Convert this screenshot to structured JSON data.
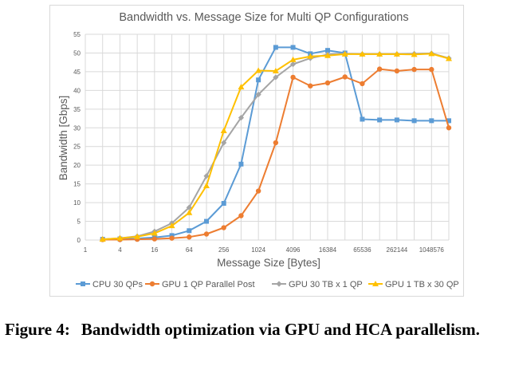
{
  "chart_data": {
    "type": "line",
    "title": "Bandwidth vs. Message Size for Multi QP Configurations",
    "xlabel": "Message Size [Bytes]",
    "ylabel": "Bandwidth [Gbps]",
    "ylim": [
      0,
      55
    ],
    "yticks": [
      0,
      5,
      10,
      15,
      20,
      25,
      30,
      35,
      40,
      45,
      50,
      55
    ],
    "xticks": [
      "1",
      "4",
      "16",
      "64",
      "256",
      "1024",
      "4096",
      "16384",
      "65536",
      "262144",
      "1048576"
    ],
    "x_log2_range": [
      0,
      21
    ],
    "grid": true,
    "legend_position": "bottom",
    "series": [
      {
        "name": "CPU 30 QPs",
        "color": "#5b9bd5",
        "marker": "square",
        "x": [
          2,
          4,
          8,
          16,
          32,
          64,
          128,
          256,
          512,
          1024,
          2048,
          4096,
          8192,
          16384,
          32768,
          65536,
          131072,
          262144,
          524288,
          1048576,
          2097152
        ],
        "values": [
          0.2,
          0.3,
          0.4,
          0.7,
          1.2,
          2.5,
          5.0,
          9.8,
          20.3,
          42.8,
          51.5,
          51.5,
          49.8,
          50.7,
          50.0,
          32.3,
          32.1,
          32.1,
          31.9,
          31.9,
          31.9
        ]
      },
      {
        "name": "GPU 1 QP Parallel Post",
        "color": "#ed7d31",
        "marker": "circle",
        "x": [
          2,
          4,
          8,
          16,
          32,
          64,
          128,
          256,
          512,
          1024,
          2048,
          4096,
          8192,
          16384,
          32768,
          65536,
          131072,
          262144,
          524288,
          1048576,
          2097152
        ],
        "values": [
          0.1,
          0.1,
          0.2,
          0.3,
          0.5,
          0.8,
          1.6,
          3.3,
          6.5,
          13.1,
          26.0,
          43.5,
          41.2,
          42.0,
          43.6,
          41.8,
          45.7,
          45.2,
          45.6,
          45.6,
          30.0
        ]
      },
      {
        "name": "GPU 30 TB x 1 QP",
        "color": "#a5a5a5",
        "marker": "diamond",
        "x": [
          2,
          4,
          8,
          16,
          32,
          64,
          128,
          256,
          512,
          1024,
          2048,
          4096,
          8192,
          16384,
          32768,
          65536,
          131072,
          262144,
          524288,
          1048576,
          2097152
        ],
        "values": [
          0.2,
          0.5,
          1.0,
          2.3,
          4.5,
          8.7,
          17.1,
          26.0,
          32.7,
          38.9,
          43.5,
          47.0,
          48.6,
          49.6,
          49.8,
          49.7,
          49.7,
          49.7,
          49.8,
          49.9,
          48.6
        ]
      },
      {
        "name": "GPU 1 TB x 30 QP",
        "color": "#ffc000",
        "marker": "triangle",
        "x": [
          2,
          4,
          8,
          16,
          32,
          64,
          128,
          256,
          512,
          1024,
          2048,
          4096,
          8192,
          16384,
          32768,
          65536,
          131072,
          262144,
          524288,
          1048576,
          2097152
        ],
        "values": [
          0.2,
          0.5,
          0.9,
          1.8,
          3.8,
          7.3,
          14.5,
          29.2,
          40.9,
          45.3,
          45.2,
          48.2,
          49.1,
          49.3,
          49.7,
          49.7,
          49.7,
          49.7,
          49.6,
          49.8,
          48.5
        ]
      }
    ]
  },
  "caption": {
    "label": "Figure 4:",
    "text": "Bandwidth optimization via GPU and HCA paral­lelism."
  }
}
